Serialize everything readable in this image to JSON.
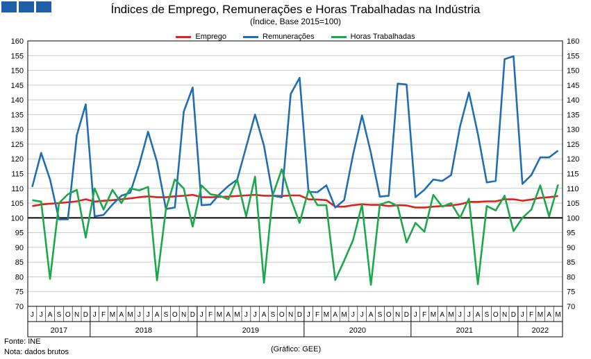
{
  "header": {
    "title": "Índices de Emprego, Remunerações e Horas Trabalhadas na Indústria",
    "subtitle": "(Índice, Base 2015=100)"
  },
  "footer": {
    "source": "Fonte: INE",
    "note": "Nota: dados brutos",
    "credit": "(Gráfico: GEE)"
  },
  "colors": {
    "logo": "#1f5fa8",
    "emprego": "#e0201b",
    "remuneracoes": "#1f6db3",
    "horas": "#1aa84a",
    "baseline": "#000000",
    "grid": "#c8c8c8"
  },
  "chart_data": {
    "type": "line",
    "ylim": [
      70,
      160
    ],
    "ytick_step": 5,
    "baseline": 100,
    "grid": true,
    "legend_position": "top-center",
    "months": [
      "J",
      "J",
      "A",
      "S",
      "O",
      "N",
      "D",
      "J",
      "F",
      "M",
      "A",
      "M",
      "J",
      "J",
      "A",
      "S",
      "O",
      "N",
      "D",
      "J",
      "F",
      "M",
      "A",
      "M",
      "J",
      "J",
      "A",
      "S",
      "O",
      "N",
      "D",
      "J",
      "F",
      "M",
      "A",
      "M",
      "J",
      "J",
      "A",
      "S",
      "O",
      "N",
      "D",
      "J",
      "F",
      "M",
      "A",
      "M",
      "J",
      "J",
      "A",
      "S",
      "O",
      "N",
      "D",
      "J",
      "F",
      "M",
      "A",
      "M"
    ],
    "years": [
      {
        "label": "2017",
        "count": 7
      },
      {
        "label": "2018",
        "count": 12
      },
      {
        "label": "2019",
        "count": 12
      },
      {
        "label": "2020",
        "count": 12
      },
      {
        "label": "2021",
        "count": 12
      },
      {
        "label": "2022",
        "count": 5
      }
    ],
    "series": [
      {
        "name": "Emprego",
        "color_key": "emprego",
        "values": [
          104.0,
          104.5,
          104.8,
          105.0,
          105.3,
          105.6,
          106.3,
          105.5,
          105.8,
          106.0,
          106.3,
          106.6,
          107.0,
          107.3,
          107.0,
          107.0,
          107.3,
          107.5,
          107.8,
          107.0,
          107.0,
          107.1,
          107.2,
          107.4,
          107.6,
          107.8,
          107.5,
          107.5,
          107.4,
          107.6,
          107.6,
          106.3,
          106.2,
          106.0,
          103.8,
          103.8,
          104.3,
          104.6,
          104.4,
          104.4,
          104.0,
          104.3,
          104.2,
          103.5,
          103.5,
          103.8,
          104.0,
          104.2,
          104.6,
          105.4,
          105.4,
          105.6,
          105.6,
          106.3,
          106.3,
          105.8,
          106.2,
          106.8,
          107.0,
          107.4
        ]
      },
      {
        "name": "Remunerações",
        "color_key": "remuneracoes",
        "values": [
          110.5,
          122.0,
          113.0,
          99.5,
          99.5,
          128.0,
          138.5,
          100.5,
          101.0,
          104.5,
          107.5,
          108.5,
          118.0,
          129.2,
          119.0,
          103.0,
          103.5,
          136.0,
          144.2,
          104.3,
          104.5,
          108.0,
          110.8,
          113.0,
          124.0,
          135.0,
          124.5,
          107.5,
          107.0,
          142.0,
          147.5,
          108.8,
          108.7,
          111.0,
          103.5,
          106.0,
          121.5,
          134.7,
          122.0,
          107.2,
          107.5,
          145.5,
          145.2,
          107.0,
          109.5,
          113.0,
          112.5,
          114.5,
          131.0,
          142.5,
          128.5,
          112.0,
          112.5,
          153.8,
          154.8,
          111.5,
          114.5,
          120.5,
          120.5,
          122.8
        ]
      },
      {
        "name": "Horas Trabalhadas",
        "color_key": "horas",
        "values": [
          106.0,
          105.5,
          79.3,
          105.0,
          108.0,
          109.5,
          93.3,
          110.0,
          102.8,
          109.5,
          105.0,
          110.0,
          109.3,
          110.5,
          78.8,
          103.0,
          113.0,
          110.0,
          97.0,
          111.0,
          108.0,
          107.5,
          106.3,
          113.0,
          100.5,
          114.0,
          78.0,
          107.8,
          116.5,
          106.5,
          98.3,
          109.5,
          104.3,
          104.3,
          78.9,
          85.5,
          92.5,
          104.5,
          77.3,
          104.5,
          105.5,
          104.0,
          91.7,
          98.3,
          95.3,
          107.8,
          103.8,
          105.0,
          100.0,
          106.5,
          77.5,
          104.0,
          102.5,
          107.5,
          95.5,
          100.0,
          102.8,
          111.0,
          100.5,
          111.3
        ]
      }
    ]
  }
}
